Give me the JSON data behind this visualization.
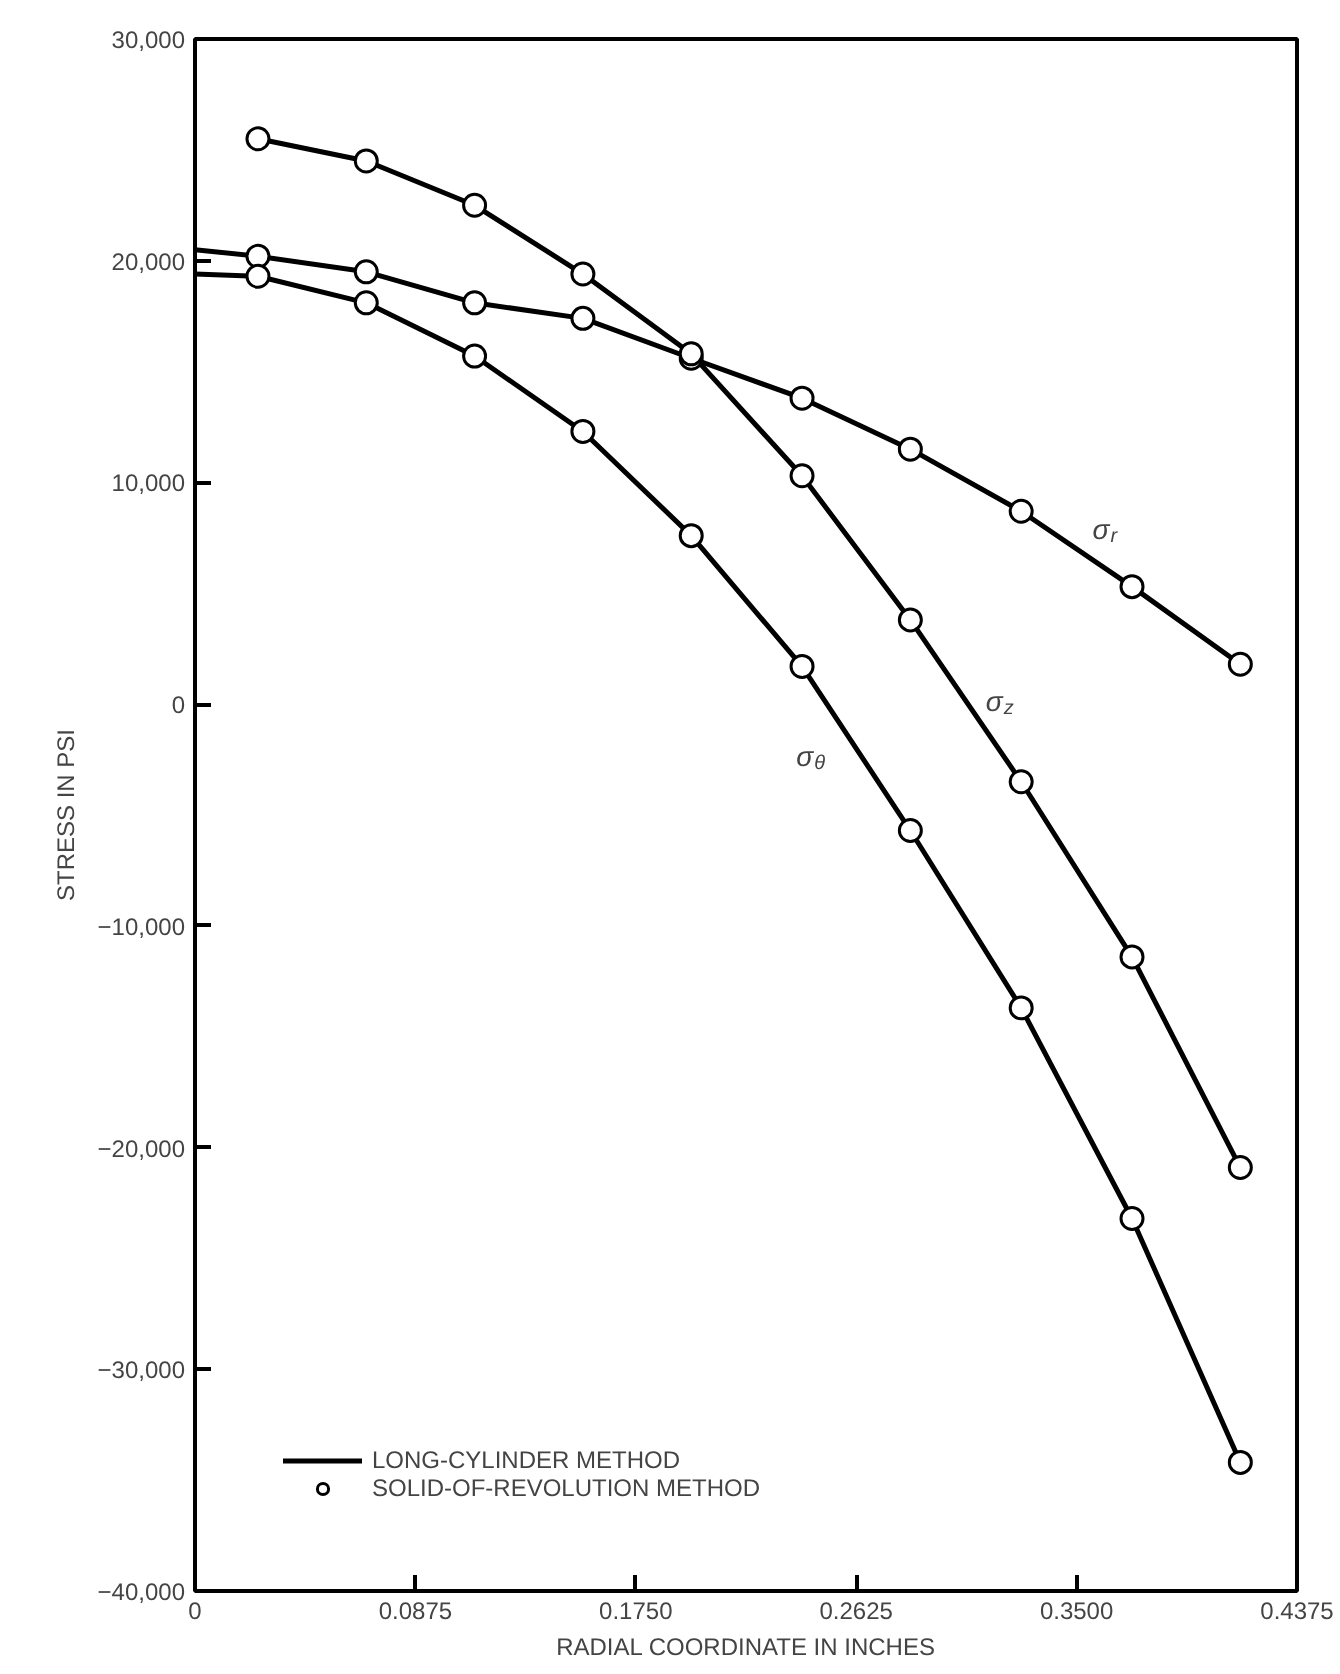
{
  "chart_data": {
    "type": "line",
    "xlabel": "RADIAL COORDINATE IN INCHES",
    "ylabel": "STRESS IN PSI",
    "xlim": [
      0,
      0.4375
    ],
    "ylim": [
      -40000,
      30000
    ],
    "xticks": [
      0,
      {
        "value": 0.0875,
        "label": "0.0875"
      },
      {
        "value": 0.175,
        "label": "0.1750"
      },
      {
        "value": 0.2625,
        "label": "0.2625"
      },
      {
        "value": 0.35,
        "label": "0.3500"
      },
      {
        "value": 0.4375,
        "label": "0.4375"
      }
    ],
    "yticks": [
      {
        "value": -40000,
        "label": "−40,000"
      },
      {
        "value": -30000,
        "label": "−30,000"
      },
      {
        "value": -20000,
        "label": "−20,000"
      },
      {
        "value": -10000,
        "label": "−10,000"
      },
      0,
      {
        "value": 10000,
        "label": "10,000"
      },
      {
        "value": 20000,
        "label": "20,000"
      },
      {
        "value": 30000,
        "label": "30,000"
      }
    ],
    "grid": false,
    "legend": "bottom left",
    "series": [
      {
        "name": "LONG-CYLINDER METHOD",
        "color": "#000000",
        "x": [
          0,
          0.025,
          0.068,
          0.111,
          0.154,
          0.197,
          0.241,
          0.284,
          0.328,
          0.372,
          0.415
        ],
        "values": [
          20500,
          20200,
          19500,
          18100,
          17400,
          15600,
          13800,
          11500,
          8700,
          5300,
          1800
        ]
      },
      {
        "color": "#000000",
        "x": [
          0.025,
          0.068,
          0.111,
          0.154,
          0.197,
          0.241,
          0.284,
          0.328,
          0.372,
          0.415
        ],
        "values": [
          25500,
          24500,
          22500,
          19400,
          15800,
          10300,
          3800,
          -3500,
          -11400,
          -20900
        ]
      },
      {
        "color": "#000000",
        "x": [
          0,
          0.025,
          0.068,
          0.111,
          0.154,
          0.197,
          0.241,
          0.284,
          0.328,
          0.372,
          0.415
        ],
        "values": [
          19400,
          19300,
          18100,
          15700,
          12300,
          7600,
          1700,
          -5700,
          -13700,
          -23200,
          -34200
        ]
      },
      {
        "name": "SOLID-OF-REVOLUTION METHOD",
        "type": "scatter",
        "marker": "circle",
        "color": "#000000",
        "x": [
          0.025,
          0.068,
          0.111,
          0.154,
          0.197,
          0.241,
          0.284,
          0.328,
          0.372,
          0.415
        ],
        "values": [
          20200,
          19500,
          18100,
          17400,
          15600,
          13800,
          11500,
          8700,
          5300,
          1800
        ]
      },
      {
        "type": "scatter",
        "marker": "circle",
        "color": "#000000",
        "x": [
          0.025,
          0.068,
          0.111,
          0.154,
          0.197,
          0.241,
          0.284,
          0.328,
          0.372,
          0.415
        ],
        "values": [
          25500,
          24500,
          22500,
          19400,
          15800,
          10300,
          3800,
          -3500,
          -11400,
          -20900
        ]
      },
      {
        "type": "scatter",
        "marker": "circle",
        "color": "#000000",
        "x": [
          0.025,
          0.068,
          0.111,
          0.154,
          0.197,
          0.241,
          0.284,
          0.328,
          0.372,
          0.415
        ],
        "values": [
          19300,
          18100,
          15700,
          12300,
          7600,
          1700,
          -5700,
          -13700,
          -23200,
          -34200
        ]
      }
    ],
    "annotations": [
      "σ$_{r}$",
      "σ$_{z}$",
      "σ$_{θ}$"
    ]
  }
}
